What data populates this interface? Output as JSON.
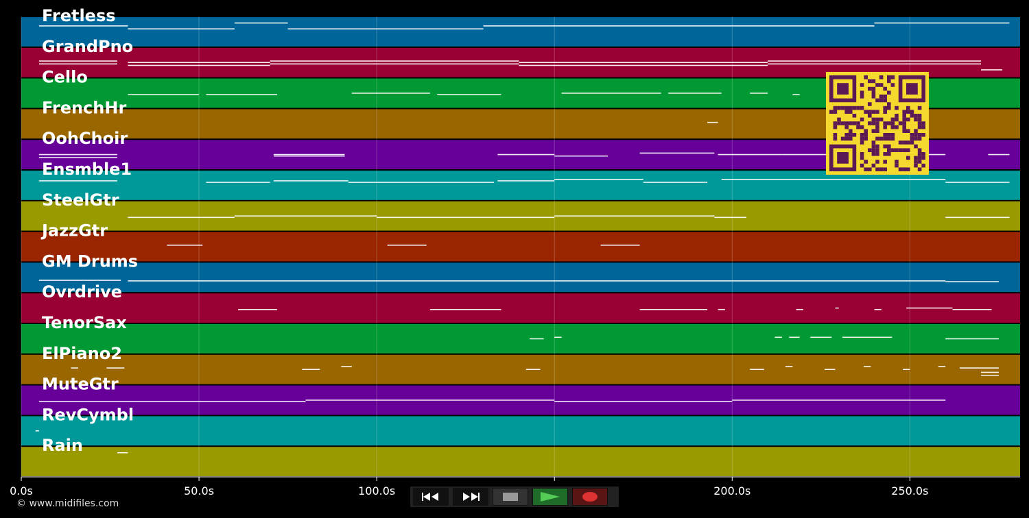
{
  "chart_data": {
    "type": "piano-roll",
    "x_unit": "s",
    "xlim": [
      0,
      281
    ],
    "x_ticks": [
      {
        "value": 0,
        "label": "0.0s"
      },
      {
        "value": 50,
        "label": "50.0s"
      },
      {
        "value": 100,
        "label": "100.0s"
      },
      {
        "value": 150,
        "label": "150.0s"
      },
      {
        "value": 200,
        "label": "200.0s"
      },
      {
        "value": 250,
        "label": "250.0s"
      }
    ],
    "grid": true,
    "tracks": [
      {
        "name": "Fretless",
        "color": "#006699",
        "notes": [
          [
            5,
            30,
            0.3
          ],
          [
            30,
            60,
            0.4
          ],
          [
            60,
            75,
            0.2
          ],
          [
            75,
            130,
            0.4
          ],
          [
            130,
            200,
            0.3
          ],
          [
            200,
            240,
            0.3
          ],
          [
            240,
            278,
            0.2
          ]
        ]
      },
      {
        "name": "GrandPno",
        "color": "#990033",
        "notes": [
          [
            5,
            27,
            0.45
          ],
          [
            5,
            27,
            0.55
          ],
          [
            30,
            70,
            0.5
          ],
          [
            30,
            70,
            0.6
          ],
          [
            70,
            140,
            0.45
          ],
          [
            70,
            140,
            0.55
          ],
          [
            140,
            210,
            0.5
          ],
          [
            140,
            210,
            0.6
          ],
          [
            210,
            270,
            0.45
          ],
          [
            210,
            270,
            0.55
          ],
          [
            270,
            276,
            0.75
          ]
        ]
      },
      {
        "name": "Cello",
        "color": "#009933",
        "notes": [
          [
            30,
            50,
            0.55
          ],
          [
            52,
            72,
            0.55
          ],
          [
            93,
            115,
            0.5
          ],
          [
            117,
            135,
            0.55
          ],
          [
            152,
            180,
            0.5
          ],
          [
            182,
            197,
            0.5
          ],
          [
            205,
            210,
            0.5
          ],
          [
            217,
            219,
            0.55
          ]
        ]
      },
      {
        "name": "FrenchHr",
        "color": "#996600",
        "notes": [
          [
            193,
            196,
            0.45
          ]
        ]
      },
      {
        "name": "OohChoir",
        "color": "#660099",
        "notes": [
          [
            5,
            27,
            0.5
          ],
          [
            5,
            27,
            0.6
          ],
          [
            71,
            91,
            0.5
          ],
          [
            71,
            91,
            0.55
          ],
          [
            134,
            150,
            0.5
          ],
          [
            150,
            165,
            0.55
          ],
          [
            174,
            195,
            0.45
          ],
          [
            196,
            214,
            0.5
          ],
          [
            214,
            260,
            0.5
          ],
          [
            272,
            278,
            0.5
          ]
        ]
      },
      {
        "name": "Ensmble1",
        "color": "#009999",
        "notes": [
          [
            5,
            27,
            0.35
          ],
          [
            52,
            70,
            0.4
          ],
          [
            71,
            92,
            0.35
          ],
          [
            92,
            133,
            0.4
          ],
          [
            134,
            150,
            0.35
          ],
          [
            150,
            175,
            0.3
          ],
          [
            175,
            193,
            0.4
          ],
          [
            197,
            260,
            0.3
          ],
          [
            260,
            278,
            0.4
          ]
        ]
      },
      {
        "name": "SteelGtr",
        "color": "#999900",
        "notes": [
          [
            30,
            60,
            0.55
          ],
          [
            60,
            100,
            0.5
          ],
          [
            100,
            150,
            0.55
          ],
          [
            150,
            195,
            0.5
          ],
          [
            195,
            204,
            0.55
          ],
          [
            260,
            278,
            0.55
          ]
        ]
      },
      {
        "name": "JazzGtr",
        "color": "#992600",
        "notes": [
          [
            41,
            51,
            0.45
          ],
          [
            103,
            114,
            0.45
          ],
          [
            163,
            174,
            0.45
          ]
        ]
      },
      {
        "name": "GM Drums",
        "color": "#006699",
        "notes": [
          [
            5,
            28,
            0.6
          ],
          [
            30,
            80,
            0.62
          ],
          [
            80,
            140,
            0.62
          ],
          [
            140,
            200,
            0.62
          ],
          [
            200,
            260,
            0.62
          ],
          [
            260,
            275,
            0.65
          ]
        ]
      },
      {
        "name": "Ovrdrive",
        "color": "#990033",
        "notes": [
          [
            61,
            72,
            0.55
          ],
          [
            115,
            135,
            0.55
          ],
          [
            174,
            193,
            0.55
          ],
          [
            196,
            198,
            0.55
          ],
          [
            218,
            220,
            0.55
          ],
          [
            229,
            230,
            0.5
          ],
          [
            240,
            242,
            0.55
          ],
          [
            249,
            262,
            0.5
          ],
          [
            262,
            273,
            0.55
          ]
        ]
      },
      {
        "name": "TenorSax",
        "color": "#009933",
        "notes": [
          [
            143,
            147,
            0.5
          ],
          [
            150,
            152,
            0.45
          ],
          [
            212,
            214,
            0.45
          ],
          [
            216,
            219,
            0.45
          ],
          [
            222,
            228,
            0.45
          ],
          [
            231,
            245,
            0.45
          ],
          [
            260,
            275,
            0.5
          ]
        ]
      },
      {
        "name": "ElPiano2",
        "color": "#996600",
        "notes": [
          [
            14,
            16,
            0.45
          ],
          [
            24,
            29,
            0.45
          ],
          [
            79,
            84,
            0.5
          ],
          [
            90,
            93,
            0.4
          ],
          [
            142,
            146,
            0.5
          ],
          [
            205,
            209,
            0.5
          ],
          [
            215,
            217,
            0.4
          ],
          [
            226,
            229,
            0.5
          ],
          [
            237,
            239,
            0.4
          ],
          [
            248,
            250,
            0.5
          ],
          [
            258,
            260,
            0.4
          ],
          [
            264,
            275,
            0.45
          ],
          [
            270,
            275,
            0.6
          ],
          [
            270,
            275,
            0.7
          ]
        ]
      },
      {
        "name": "MuteGtr",
        "color": "#660099",
        "notes": [
          [
            5,
            30,
            0.55
          ],
          [
            30,
            80,
            0.55
          ],
          [
            80,
            150,
            0.5
          ],
          [
            150,
            200,
            0.55
          ],
          [
            200,
            260,
            0.5
          ]
        ]
      },
      {
        "name": "RevCymbl",
        "color": "#009999",
        "notes": [
          [
            4,
            5,
            0.5
          ]
        ]
      },
      {
        "name": "Rain",
        "color": "#999900",
        "notes": [
          [
            27,
            30,
            0.2
          ]
        ]
      }
    ]
  },
  "controls": {
    "rewind_icon": "rewind-icon",
    "fast_forward_icon": "fast-forward-icon",
    "stop_icon": "stop-icon",
    "play_icon": "play-icon",
    "record_icon": "record-icon",
    "colors": {
      "bar": "#222222",
      "rewind": "#111111",
      "ff": "#111111",
      "stop": "#333333",
      "play": "#1f6b2a",
      "record": "#5a1414",
      "play_glyph": "#55cc55",
      "record_glyph": "#dd3333",
      "stop_glyph": "#999999"
    }
  },
  "footer": {
    "copyright": "© www.midifiles.com"
  },
  "qr": {
    "name": "qr-code",
    "color": "#f6d92f",
    "dark": "#5b1a55"
  }
}
